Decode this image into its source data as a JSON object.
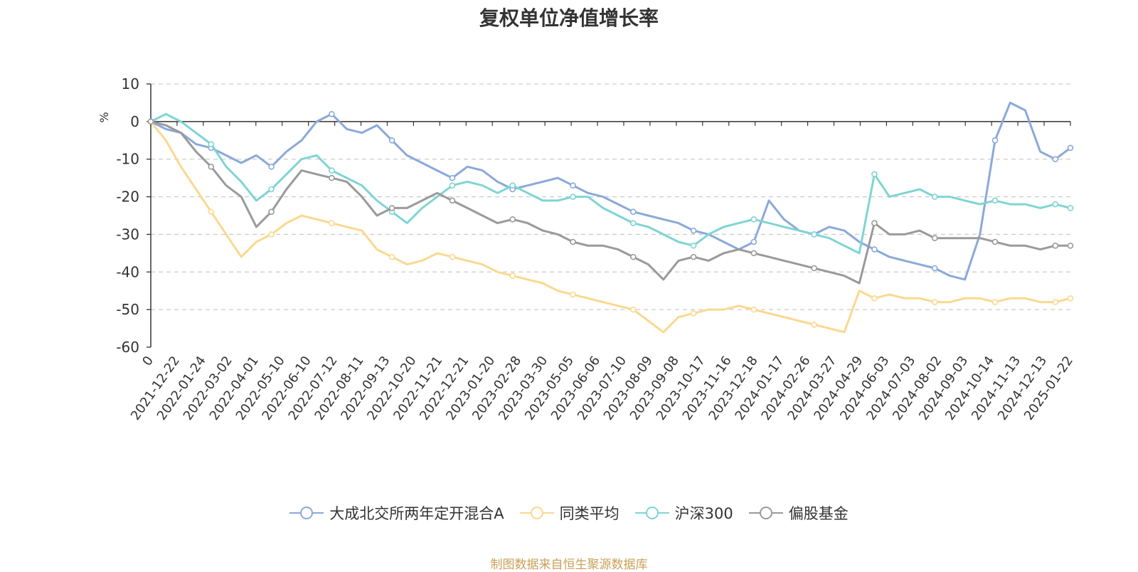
{
  "chart_data": {
    "type": "line",
    "title": "复权单位净值增长率",
    "ylabel": "%",
    "xlabel": "",
    "ylim": [
      -60,
      10
    ],
    "yticks": [
      10,
      0,
      -10,
      -20,
      -30,
      -40,
      -50,
      -60
    ],
    "x_tick_labels": [
      "0",
      "2021-12-22",
      "2022-01-24",
      "2022-03-02",
      "2022-04-01",
      "2022-05-10",
      "2022-06-10",
      "2022-07-12",
      "2022-08-11",
      "2022-09-13",
      "2022-10-20",
      "2022-11-21",
      "2022-12-21",
      "2023-01-20",
      "2023-02-28",
      "2023-03-30",
      "2023-05-05",
      "2023-06-06",
      "2023-07-10",
      "2023-08-09",
      "2023-09-08",
      "2023-10-17",
      "2023-11-16",
      "2023-12-18",
      "2024-01-17",
      "2024-02-26",
      "2024-03-27",
      "2024-04-29",
      "2024-06-03",
      "2024-07-03",
      "2024-08-02",
      "2024-09-03",
      "2024-10-14",
      "2024-11-13",
      "2024-12-13",
      "2025-01-22"
    ],
    "grid": true,
    "legend_position": "bottom",
    "source_text": "制图数据来自恒生聚源数据库",
    "series": [
      {
        "name": "大成北交所两年定开混合A",
        "color": "#8aa9d9",
        "values": [
          0,
          -2,
          -3,
          -6,
          -7,
          -9,
          -11,
          -9,
          -12,
          -8,
          -5,
          0,
          2,
          -2,
          -3,
          -1,
          -5,
          -9,
          -11,
          -13,
          -15,
          -12,
          -13,
          -16,
          -18,
          -17,
          -16,
          -15,
          -17,
          -19,
          -20,
          -22,
          -24,
          -25,
          -26,
          -27,
          -29,
          -30,
          -32,
          -34,
          -32,
          -21,
          -26,
          -29,
          -30,
          -28,
          -29,
          -32,
          -34,
          -36,
          -37,
          -38,
          -39,
          -41,
          -42,
          -30,
          -5,
          5,
          3,
          -8,
          -10,
          -7
        ]
      },
      {
        "name": "同类平均",
        "color": "#fbd88f",
        "values": [
          0,
          -5,
          -12,
          -18,
          -24,
          -30,
          -36,
          -32,
          -30,
          -27,
          -25,
          -26,
          -27,
          -28,
          -29,
          -34,
          -36,
          -38,
          -37,
          -35,
          -36,
          -37,
          -38,
          -40,
          -41,
          -42,
          -43,
          -45,
          -46,
          -47,
          -48,
          -49,
          -50,
          -53,
          -56,
          -52,
          -51,
          -50,
          -50,
          -49,
          -50,
          -51,
          -52,
          -53,
          -54,
          -55,
          -56,
          -45,
          -47,
          -46,
          -47,
          -47,
          -48,
          -48,
          -47,
          -47,
          -48,
          -47,
          -47,
          -48,
          -48,
          -47
        ]
      },
      {
        "name": "沪深300",
        "color": "#7fd4d4",
        "values": [
          0,
          2,
          0,
          -3,
          -6,
          -12,
          -16,
          -21,
          -18,
          -14,
          -10,
          -9,
          -13,
          -15,
          -17,
          -21,
          -24,
          -27,
          -23,
          -20,
          -17,
          -16,
          -17,
          -19,
          -17,
          -19,
          -21,
          -21,
          -20,
          -20,
          -23,
          -25,
          -27,
          -28,
          -30,
          -32,
          -33,
          -30,
          -28,
          -27,
          -26,
          -27,
          -28,
          -29,
          -30,
          -31,
          -33,
          -35,
          -14,
          -20,
          -19,
          -18,
          -20,
          -20,
          -21,
          -22,
          -21,
          -22,
          -22,
          -23,
          -22,
          -23
        ]
      },
      {
        "name": "偏股基金",
        "color": "#9a9a9a",
        "values": [
          0,
          -1,
          -3,
          -8,
          -12,
          -17,
          -20,
          -28,
          -24,
          -18,
          -13,
          -14,
          -15,
          -16,
          -20,
          -25,
          -23,
          -23,
          -21,
          -19,
          -21,
          -23,
          -25,
          -27,
          -26,
          -27,
          -29,
          -30,
          -32,
          -33,
          -33,
          -34,
          -36,
          -38,
          -42,
          -37,
          -36,
          -37,
          -35,
          -34,
          -35,
          -36,
          -37,
          -38,
          -39,
          -40,
          -41,
          -43,
          -27,
          -30,
          -30,
          -29,
          -31,
          -31,
          -31,
          -31,
          -32,
          -33,
          -33,
          -34,
          -33,
          -33
        ]
      }
    ]
  }
}
